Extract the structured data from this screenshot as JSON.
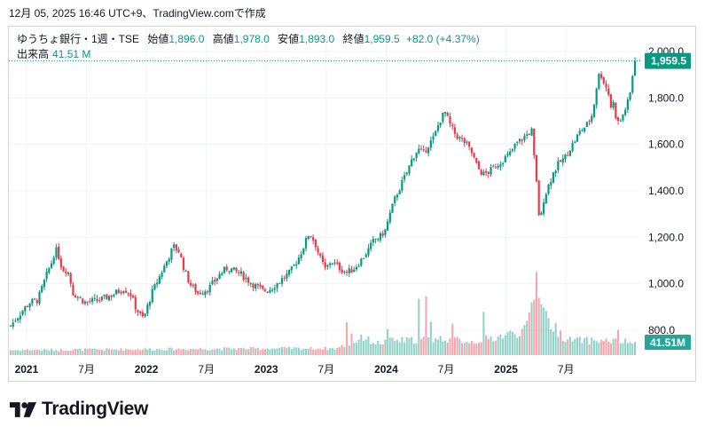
{
  "caption": "12月 05, 2025 16:46 UTC+9、TradingView.comで作成",
  "legend": {
    "symbol": "ゆうちょ銀行・1週・TSE",
    "open_label": "始値",
    "open_value": "1,896.0",
    "high_label": "高値",
    "high_value": "1,978.0",
    "low_label": "安値",
    "low_value": "1,893.0",
    "close_label": "終値",
    "close_value": "1,959.5",
    "change": "+82.0 (+4.37%)",
    "volume_label": "出来高",
    "volume_value": "41.51 M"
  },
  "brand": {
    "name": "TradingView"
  },
  "colors": {
    "up": "#089981",
    "down": "#f23645",
    "grid": "#f0f3fa",
    "axis_text": "#131722"
  },
  "chart_data": {
    "type": "candlestick",
    "x_tick_labels": [
      "2021",
      "7月",
      "2022",
      "7月",
      "2023",
      "7月",
      "2024",
      "7月",
      "2025",
      "7月"
    ],
    "y_tick_labels": [
      "800.0",
      "1,000.0",
      "1,200.0",
      "1,400.0",
      "1,600.0",
      "1,800.0",
      "2,000.0"
    ],
    "ylim": [
      780,
      2040
    ],
    "last_price_label": "1,959.5",
    "last_volume_label": "41.51M",
    "price_path": [
      [
        0,
        820
      ],
      [
        8,
        880
      ],
      [
        14,
        920
      ],
      [
        20,
        930
      ],
      [
        26,
        1030
      ],
      [
        30,
        1090
      ],
      [
        33,
        1150
      ],
      [
        36,
        1110
      ],
      [
        38,
        1060
      ],
      [
        42,
        1060
      ],
      [
        46,
        960
      ],
      [
        55,
        920
      ],
      [
        66,
        930
      ],
      [
        74,
        950
      ],
      [
        83,
        980
      ],
      [
        88,
        960
      ],
      [
        92,
        900
      ],
      [
        96,
        860
      ],
      [
        98,
        850
      ],
      [
        104,
        960
      ],
      [
        112,
        1060
      ],
      [
        116,
        1110
      ],
      [
        120,
        1160
      ],
      [
        124,
        1140
      ],
      [
        128,
        1060
      ],
      [
        132,
        1000
      ],
      [
        138,
        960
      ],
      [
        146,
        980
      ],
      [
        154,
        1040
      ],
      [
        160,
        1070
      ],
      [
        170,
        1040
      ],
      [
        178,
        1000
      ],
      [
        186,
        970
      ],
      [
        192,
        980
      ],
      [
        198,
        1010
      ],
      [
        206,
        1050
      ],
      [
        212,
        1110
      ],
      [
        218,
        1190
      ],
      [
        220,
        1220
      ],
      [
        224,
        1180
      ],
      [
        228,
        1110
      ],
      [
        232,
        1060
      ],
      [
        236,
        1100
      ],
      [
        240,
        1080
      ],
      [
        244,
        1060
      ],
      [
        248,
        1050
      ],
      [
        252,
        1060
      ],
      [
        258,
        1100
      ],
      [
        264,
        1150
      ],
      [
        268,
        1190
      ],
      [
        272,
        1200
      ],
      [
        276,
        1230
      ],
      [
        280,
        1310
      ],
      [
        284,
        1380
      ],
      [
        288,
        1430
      ],
      [
        292,
        1480
      ],
      [
        296,
        1540
      ],
      [
        300,
        1580
      ],
      [
        304,
        1560
      ],
      [
        308,
        1600
      ],
      [
        312,
        1630
      ],
      [
        316,
        1700
      ],
      [
        320,
        1740
      ],
      [
        324,
        1680
      ],
      [
        328,
        1640
      ],
      [
        332,
        1620
      ],
      [
        336,
        1600
      ],
      [
        340,
        1560
      ],
      [
        344,
        1500
      ],
      [
        348,
        1470
      ],
      [
        352,
        1480
      ],
      [
        356,
        1500
      ],
      [
        360,
        1520
      ],
      [
        364,
        1540
      ],
      [
        368,
        1560
      ],
      [
        372,
        1600
      ],
      [
        376,
        1620
      ],
      [
        380,
        1640
      ],
      [
        384,
        1660
      ],
      [
        386,
        1520
      ],
      [
        388,
        1400
      ],
      [
        390,
        1240
      ],
      [
        392,
        1350
      ],
      [
        396,
        1420
      ],
      [
        400,
        1480
      ],
      [
        404,
        1520
      ],
      [
        408,
        1540
      ],
      [
        412,
        1580
      ],
      [
        416,
        1620
      ],
      [
        420,
        1660
      ],
      [
        424,
        1680
      ],
      [
        428,
        1720
      ],
      [
        430,
        1780
      ],
      [
        432,
        1860
      ],
      [
        434,
        1910
      ],
      [
        436,
        1890
      ],
      [
        438,
        1850
      ],
      [
        440,
        1840
      ],
      [
        442,
        1760
      ],
      [
        444,
        1780
      ],
      [
        446,
        1720
      ],
      [
        448,
        1690
      ],
      [
        450,
        1710
      ],
      [
        452,
        1740
      ],
      [
        454,
        1770
      ],
      [
        456,
        1800
      ],
      [
        458,
        1890
      ],
      [
        460,
        1960
      ]
    ],
    "volume_path": [
      [
        0,
        0.06
      ],
      [
        100,
        0.07
      ],
      [
        200,
        0.08
      ],
      [
        240,
        0.08
      ],
      [
        260,
        0.2
      ],
      [
        270,
        0.14
      ],
      [
        280,
        0.17
      ],
      [
        300,
        0.18
      ],
      [
        320,
        0.2
      ],
      [
        340,
        0.16
      ],
      [
        360,
        0.22
      ],
      [
        380,
        0.3
      ],
      [
        388,
        0.9
      ],
      [
        396,
        0.4
      ],
      [
        410,
        0.18
      ],
      [
        440,
        0.17
      ],
      [
        460,
        0.15
      ]
    ],
    "volume_spikes": [
      [
        247,
        0.35
      ],
      [
        251,
        0.26
      ],
      [
        258,
        0.26
      ],
      [
        278,
        0.35
      ],
      [
        300,
        0.6
      ],
      [
        306,
        0.62
      ],
      [
        310,
        0.45
      ],
      [
        325,
        0.3
      ],
      [
        348,
        0.42
      ],
      [
        385,
        0.55
      ],
      [
        388,
        0.95
      ],
      [
        392,
        0.45
      ],
      [
        448,
        0.28
      ]
    ]
  }
}
